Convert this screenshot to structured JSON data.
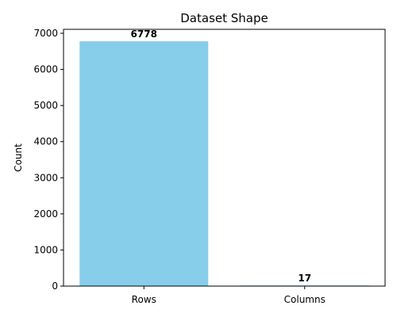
{
  "chart_data": {
    "type": "bar",
    "title": "Dataset Shape",
    "xlabel": "",
    "ylabel": "Count",
    "categories": [
      "Rows",
      "Columns"
    ],
    "values": [
      6778,
      17
    ],
    "data_labels": [
      "6778",
      "17"
    ],
    "ylim": [
      0,
      7110
    ],
    "yticks": [
      0,
      1000,
      2000,
      3000,
      4000,
      5000,
      6000,
      7000
    ],
    "ytick_labels": [
      "0",
      "1000",
      "2000",
      "3000",
      "4000",
      "5000",
      "6000",
      "7000"
    ],
    "bar_color": "#87ceeb",
    "grid": false,
    "legend": "none"
  }
}
